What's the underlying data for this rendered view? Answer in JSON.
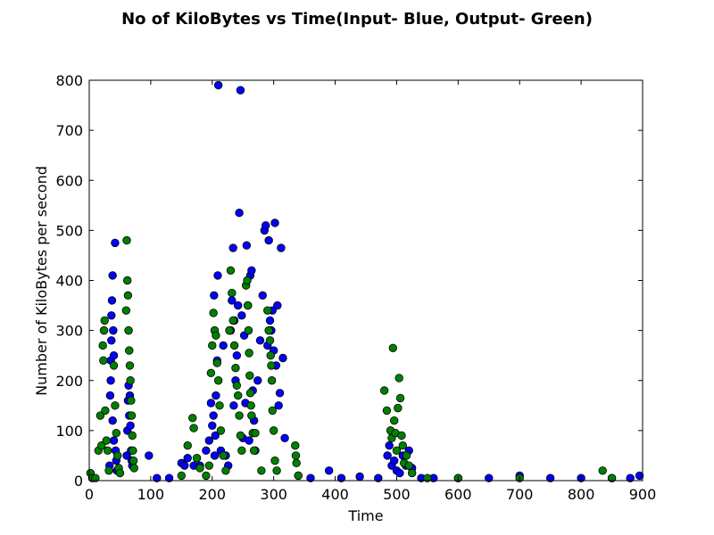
{
  "chart_data": {
    "type": "scatter",
    "title": "No of KiloBytes vs Time(Input- Blue, Output- Green)",
    "xlabel": "Time",
    "ylabel": "Number of KiloBytes per second",
    "xlim": [
      0,
      900
    ],
    "ylim": [
      0,
      800
    ],
    "xticks": [
      0,
      100,
      200,
      300,
      400,
      500,
      600,
      700,
      800,
      900
    ],
    "yticks": [
      0,
      100,
      200,
      300,
      400,
      500,
      600,
      700,
      800
    ],
    "grid": false,
    "series": [
      {
        "color": "#0000ff",
        "points": [
          [
            33,
            30
          ],
          [
            34,
            170
          ],
          [
            35,
            200
          ],
          [
            35,
            240
          ],
          [
            36,
            280
          ],
          [
            36,
            330
          ],
          [
            37,
            360
          ],
          [
            38,
            410
          ],
          [
            38,
            120
          ],
          [
            39,
            300
          ],
          [
            40,
            250
          ],
          [
            40,
            80
          ],
          [
            42,
            475
          ],
          [
            43,
            60
          ],
          [
            44,
            40
          ],
          [
            45,
            20
          ],
          [
            61,
            50
          ],
          [
            62,
            100
          ],
          [
            63,
            160
          ],
          [
            64,
            190
          ],
          [
            65,
            130
          ],
          [
            66,
            170
          ],
          [
            67,
            110
          ],
          [
            68,
            60
          ],
          [
            69,
            40
          ],
          [
            70,
            30
          ],
          [
            97,
            50
          ],
          [
            110,
            5
          ],
          [
            130,
            5
          ],
          [
            150,
            35
          ],
          [
            155,
            30
          ],
          [
            160,
            45
          ],
          [
            170,
            30
          ],
          [
            180,
            30
          ],
          [
            190,
            60
          ],
          [
            195,
            80
          ],
          [
            198,
            155
          ],
          [
            200,
            110
          ],
          [
            202,
            130
          ],
          [
            203,
            370
          ],
          [
            204,
            50
          ],
          [
            205,
            90
          ],
          [
            206,
            170
          ],
          [
            208,
            240
          ],
          [
            209,
            410
          ],
          [
            210,
            790
          ],
          [
            214,
            60
          ],
          [
            218,
            270
          ],
          [
            222,
            50
          ],
          [
            226,
            30
          ],
          [
            230,
            300
          ],
          [
            232,
            360
          ],
          [
            234,
            465
          ],
          [
            235,
            150
          ],
          [
            236,
            320
          ],
          [
            238,
            200
          ],
          [
            240,
            250
          ],
          [
            242,
            350
          ],
          [
            244,
            535
          ],
          [
            246,
            780
          ],
          [
            248,
            330
          ],
          [
            250,
            85
          ],
          [
            252,
            290
          ],
          [
            254,
            155
          ],
          [
            256,
            470
          ],
          [
            258,
            350
          ],
          [
            260,
            80
          ],
          [
            262,
            410
          ],
          [
            264,
            420
          ],
          [
            266,
            180
          ],
          [
            268,
            120
          ],
          [
            270,
            60
          ],
          [
            274,
            200
          ],
          [
            278,
            280
          ],
          [
            282,
            370
          ],
          [
            285,
            500
          ],
          [
            287,
            510
          ],
          [
            290,
            270
          ],
          [
            292,
            480
          ],
          [
            294,
            320
          ],
          [
            296,
            300
          ],
          [
            298,
            340
          ],
          [
            300,
            260
          ],
          [
            302,
            515
          ],
          [
            304,
            230
          ],
          [
            306,
            350
          ],
          [
            308,
            150
          ],
          [
            310,
            175
          ],
          [
            312,
            465
          ],
          [
            315,
            245
          ],
          [
            318,
            85
          ],
          [
            340,
            10
          ],
          [
            360,
            5
          ],
          [
            390,
            20
          ],
          [
            410,
            5
          ],
          [
            440,
            8
          ],
          [
            470,
            5
          ],
          [
            485,
            50
          ],
          [
            488,
            70
          ],
          [
            492,
            30
          ],
          [
            496,
            40
          ],
          [
            500,
            20
          ],
          [
            505,
            15
          ],
          [
            510,
            50
          ],
          [
            515,
            30
          ],
          [
            520,
            60
          ],
          [
            525,
            25
          ],
          [
            540,
            5
          ],
          [
            560,
            5
          ],
          [
            600,
            5
          ],
          [
            650,
            5
          ],
          [
            700,
            10
          ],
          [
            750,
            5
          ],
          [
            800,
            5
          ],
          [
            850,
            5
          ],
          [
            880,
            5
          ],
          [
            895,
            10
          ]
        ]
      },
      {
        "color": "#008000",
        "points": [
          [
            2,
            15
          ],
          [
            5,
            5
          ],
          [
            10,
            5
          ],
          [
            15,
            60
          ],
          [
            18,
            130
          ],
          [
            20,
            70
          ],
          [
            22,
            270
          ],
          [
            23,
            240
          ],
          [
            24,
            300
          ],
          [
            25,
            320
          ],
          [
            26,
            140
          ],
          [
            28,
            80
          ],
          [
            30,
            60
          ],
          [
            32,
            20
          ],
          [
            40,
            230
          ],
          [
            42,
            150
          ],
          [
            44,
            95
          ],
          [
            46,
            50
          ],
          [
            48,
            25
          ],
          [
            50,
            15
          ],
          [
            60,
            340
          ],
          [
            61,
            480
          ],
          [
            62,
            400
          ],
          [
            63,
            370
          ],
          [
            64,
            300
          ],
          [
            65,
            260
          ],
          [
            66,
            230
          ],
          [
            67,
            200
          ],
          [
            68,
            160
          ],
          [
            69,
            130
          ],
          [
            70,
            90
          ],
          [
            71,
            60
          ],
          [
            72,
            40
          ],
          [
            73,
            25
          ],
          [
            150,
            10
          ],
          [
            160,
            70
          ],
          [
            168,
            125
          ],
          [
            170,
            105
          ],
          [
            175,
            45
          ],
          [
            180,
            25
          ],
          [
            190,
            10
          ],
          [
            195,
            30
          ],
          [
            198,
            215
          ],
          [
            200,
            270
          ],
          [
            202,
            335
          ],
          [
            204,
            300
          ],
          [
            206,
            290
          ],
          [
            208,
            235
          ],
          [
            210,
            200
          ],
          [
            212,
            150
          ],
          [
            214,
            100
          ],
          [
            218,
            50
          ],
          [
            222,
            20
          ],
          [
            228,
            300
          ],
          [
            230,
            420
          ],
          [
            232,
            375
          ],
          [
            234,
            320
          ],
          [
            236,
            270
          ],
          [
            238,
            225
          ],
          [
            240,
            190
          ],
          [
            242,
            170
          ],
          [
            244,
            130
          ],
          [
            246,
            90
          ],
          [
            248,
            60
          ],
          [
            255,
            390
          ],
          [
            257,
            400
          ],
          [
            258,
            350
          ],
          [
            259,
            300
          ],
          [
            260,
            255
          ],
          [
            261,
            210
          ],
          [
            262,
            175
          ],
          [
            263,
            150
          ],
          [
            264,
            130
          ],
          [
            266,
            95
          ],
          [
            268,
            60
          ],
          [
            270,
            95
          ],
          [
            280,
            20
          ],
          [
            290,
            340
          ],
          [
            292,
            300
          ],
          [
            294,
            280
          ],
          [
            295,
            250
          ],
          [
            296,
            230
          ],
          [
            297,
            200
          ],
          [
            298,
            140
          ],
          [
            300,
            100
          ],
          [
            302,
            40
          ],
          [
            305,
            20
          ],
          [
            335,
            70
          ],
          [
            336,
            50
          ],
          [
            337,
            35
          ],
          [
            340,
            10
          ],
          [
            480,
            180
          ],
          [
            484,
            140
          ],
          [
            490,
            100
          ],
          [
            492,
            85
          ],
          [
            494,
            265
          ],
          [
            496,
            120
          ],
          [
            498,
            95
          ],
          [
            500,
            60
          ],
          [
            502,
            145
          ],
          [
            504,
            205
          ],
          [
            506,
            165
          ],
          [
            508,
            90
          ],
          [
            510,
            70
          ],
          [
            512,
            35
          ],
          [
            516,
            50
          ],
          [
            520,
            30
          ],
          [
            525,
            15
          ],
          [
            550,
            5
          ],
          [
            600,
            5
          ],
          [
            700,
            5
          ],
          [
            835,
            20
          ],
          [
            850,
            5
          ]
        ]
      }
    ]
  }
}
